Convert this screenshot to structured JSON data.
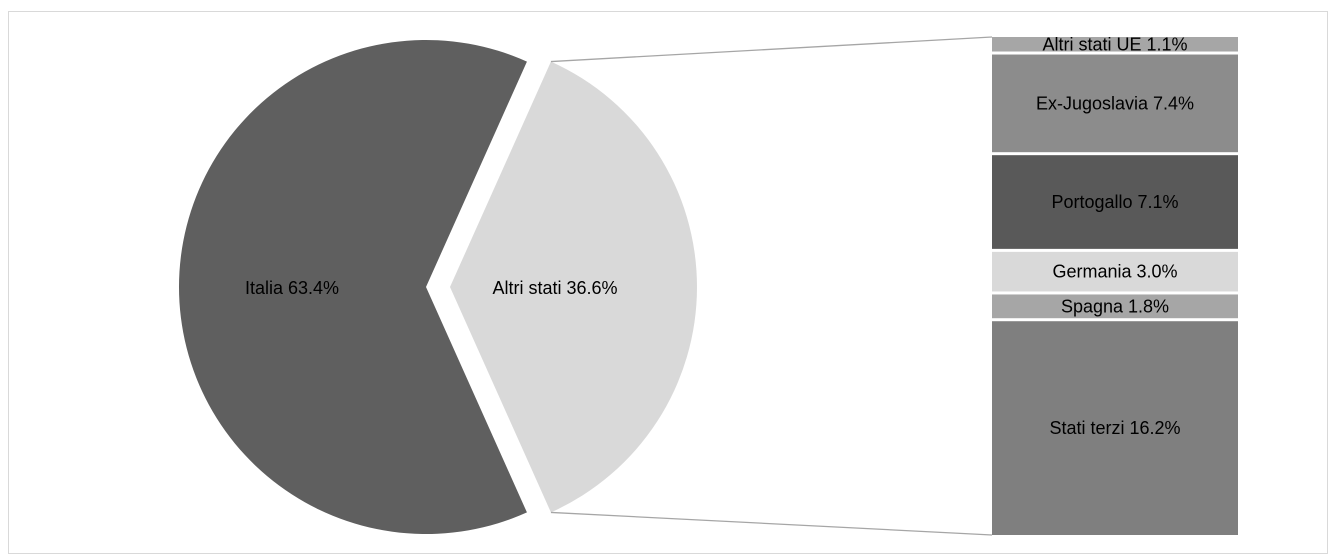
{
  "chart_data": {
    "type": "bar-of-pie",
    "pie": {
      "slices": [
        {
          "name": "Italia",
          "value": 63.4,
          "label": "Italia 63.4%",
          "color": "#5f5f5f"
        },
        {
          "name": "Altri stati",
          "value": 36.6,
          "label": "Altri stati 36.6%",
          "color": "#d9d9d9"
        }
      ]
    },
    "stacked_bar": {
      "segments": [
        {
          "name": "Altri stati UE",
          "value": 1.1,
          "label": "Altri stati UE 1.1%",
          "color": "#a6a6a6"
        },
        {
          "name": "Ex-Jugoslavia",
          "value": 7.4,
          "label": "Ex-Jugoslavia 7.4%",
          "color": "#8c8c8c"
        },
        {
          "name": "Portogallo",
          "value": 7.1,
          "label": "Portogallo 7.1%",
          "color": "#595959"
        },
        {
          "name": "Germania",
          "value": 3.0,
          "label": "Germania 3.0%",
          "color": "#d9d9d9"
        },
        {
          "name": "Spagna",
          "value": 1.8,
          "label": "Spagna 1.8%",
          "color": "#a6a6a6"
        },
        {
          "name": "Stati terzi",
          "value": 16.2,
          "label": "Stati terzi 16.2%",
          "color": "#7f7f7f"
        }
      ]
    }
  }
}
